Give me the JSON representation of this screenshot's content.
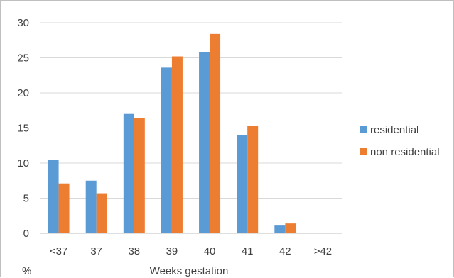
{
  "chart_data": {
    "type": "bar",
    "title": "",
    "xlabel": "Weeks gestation",
    "ylabel": "%",
    "categories": [
      "<37",
      "37",
      "38",
      "39",
      "40",
      "41",
      "42",
      ">42"
    ],
    "series": [
      {
        "name": "residential",
        "color": "#5b9bd5",
        "values": [
          10.5,
          7.5,
          17.0,
          23.6,
          25.8,
          14.0,
          1.2,
          0
        ]
      },
      {
        "name": "non residential",
        "color": "#ed7d31",
        "values": [
          7.1,
          5.7,
          16.4,
          25.2,
          28.4,
          15.3,
          1.4,
          0
        ]
      }
    ],
    "ylim": [
      0,
      30
    ],
    "yticks": [
      0,
      5,
      10,
      15,
      20,
      25,
      30
    ],
    "grid": true,
    "legend_position": "right"
  }
}
